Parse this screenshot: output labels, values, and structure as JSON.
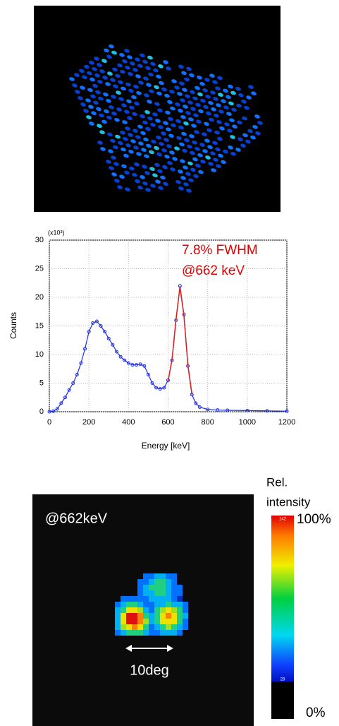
{
  "chart_data": {
    "type": "line",
    "y_multiplier": "(x10³)",
    "xlabel": "Energy [keV]",
    "ylabel": "Counts",
    "annotations": [
      "7.8%  FWHM",
      "@662 keV"
    ],
    "x": [
      0,
      20,
      40,
      60,
      80,
      100,
      120,
      140,
      160,
      180,
      200,
      220,
      240,
      260,
      280,
      300,
      320,
      340,
      360,
      380,
      400,
      420,
      440,
      460,
      480,
      500,
      520,
      540,
      560,
      580,
      600,
      620,
      640,
      660,
      680,
      700,
      720,
      740,
      760,
      800,
      850,
      900,
      1000,
      1100,
      1200
    ],
    "series": [
      {
        "color": "#1f2fe0",
        "values": [
          0,
          0.1,
          0.5,
          1.5,
          2.5,
          3.8,
          5,
          6.5,
          8.5,
          11,
          14,
          15.5,
          15.8,
          15,
          14,
          12.8,
          11.7,
          10.5,
          9.6,
          9,
          8.5,
          8.2,
          8.2,
          8.3,
          8,
          6.5,
          5,
          4.2,
          4,
          4.2,
          5.5,
          9,
          16,
          22,
          17,
          8,
          3,
          1.5,
          0.8,
          0.4,
          0.3,
          0.25,
          0.2,
          0.15,
          0.1
        ]
      },
      {
        "color": "#e02020",
        "values": [
          null,
          null,
          null,
          null,
          null,
          null,
          null,
          null,
          null,
          null,
          null,
          null,
          null,
          null,
          null,
          null,
          null,
          null,
          null,
          null,
          null,
          null,
          null,
          null,
          null,
          null,
          null,
          null,
          null,
          null,
          5.3,
          9.2,
          16.2,
          21.8,
          16.8,
          8.2,
          3.2,
          null,
          null,
          null,
          null,
          null,
          null,
          null,
          null
        ]
      }
    ],
    "xlim": [
      0,
      1200
    ],
    "xticks": [
      0,
      200,
      400,
      600,
      800,
      1000,
      1200
    ],
    "ylim": [
      0,
      30
    ],
    "yticks": [
      0,
      5,
      10,
      15,
      20,
      25,
      30
    ],
    "grid": true
  },
  "image_panel": {
    "label": "@662keV",
    "scale_label": "10deg"
  },
  "colorbar": {
    "title_line1": "Rel.",
    "title_line2": "intensity",
    "max_label": "100%",
    "min_label": "0%",
    "max_counts": 142,
    "min_counts": 28
  }
}
